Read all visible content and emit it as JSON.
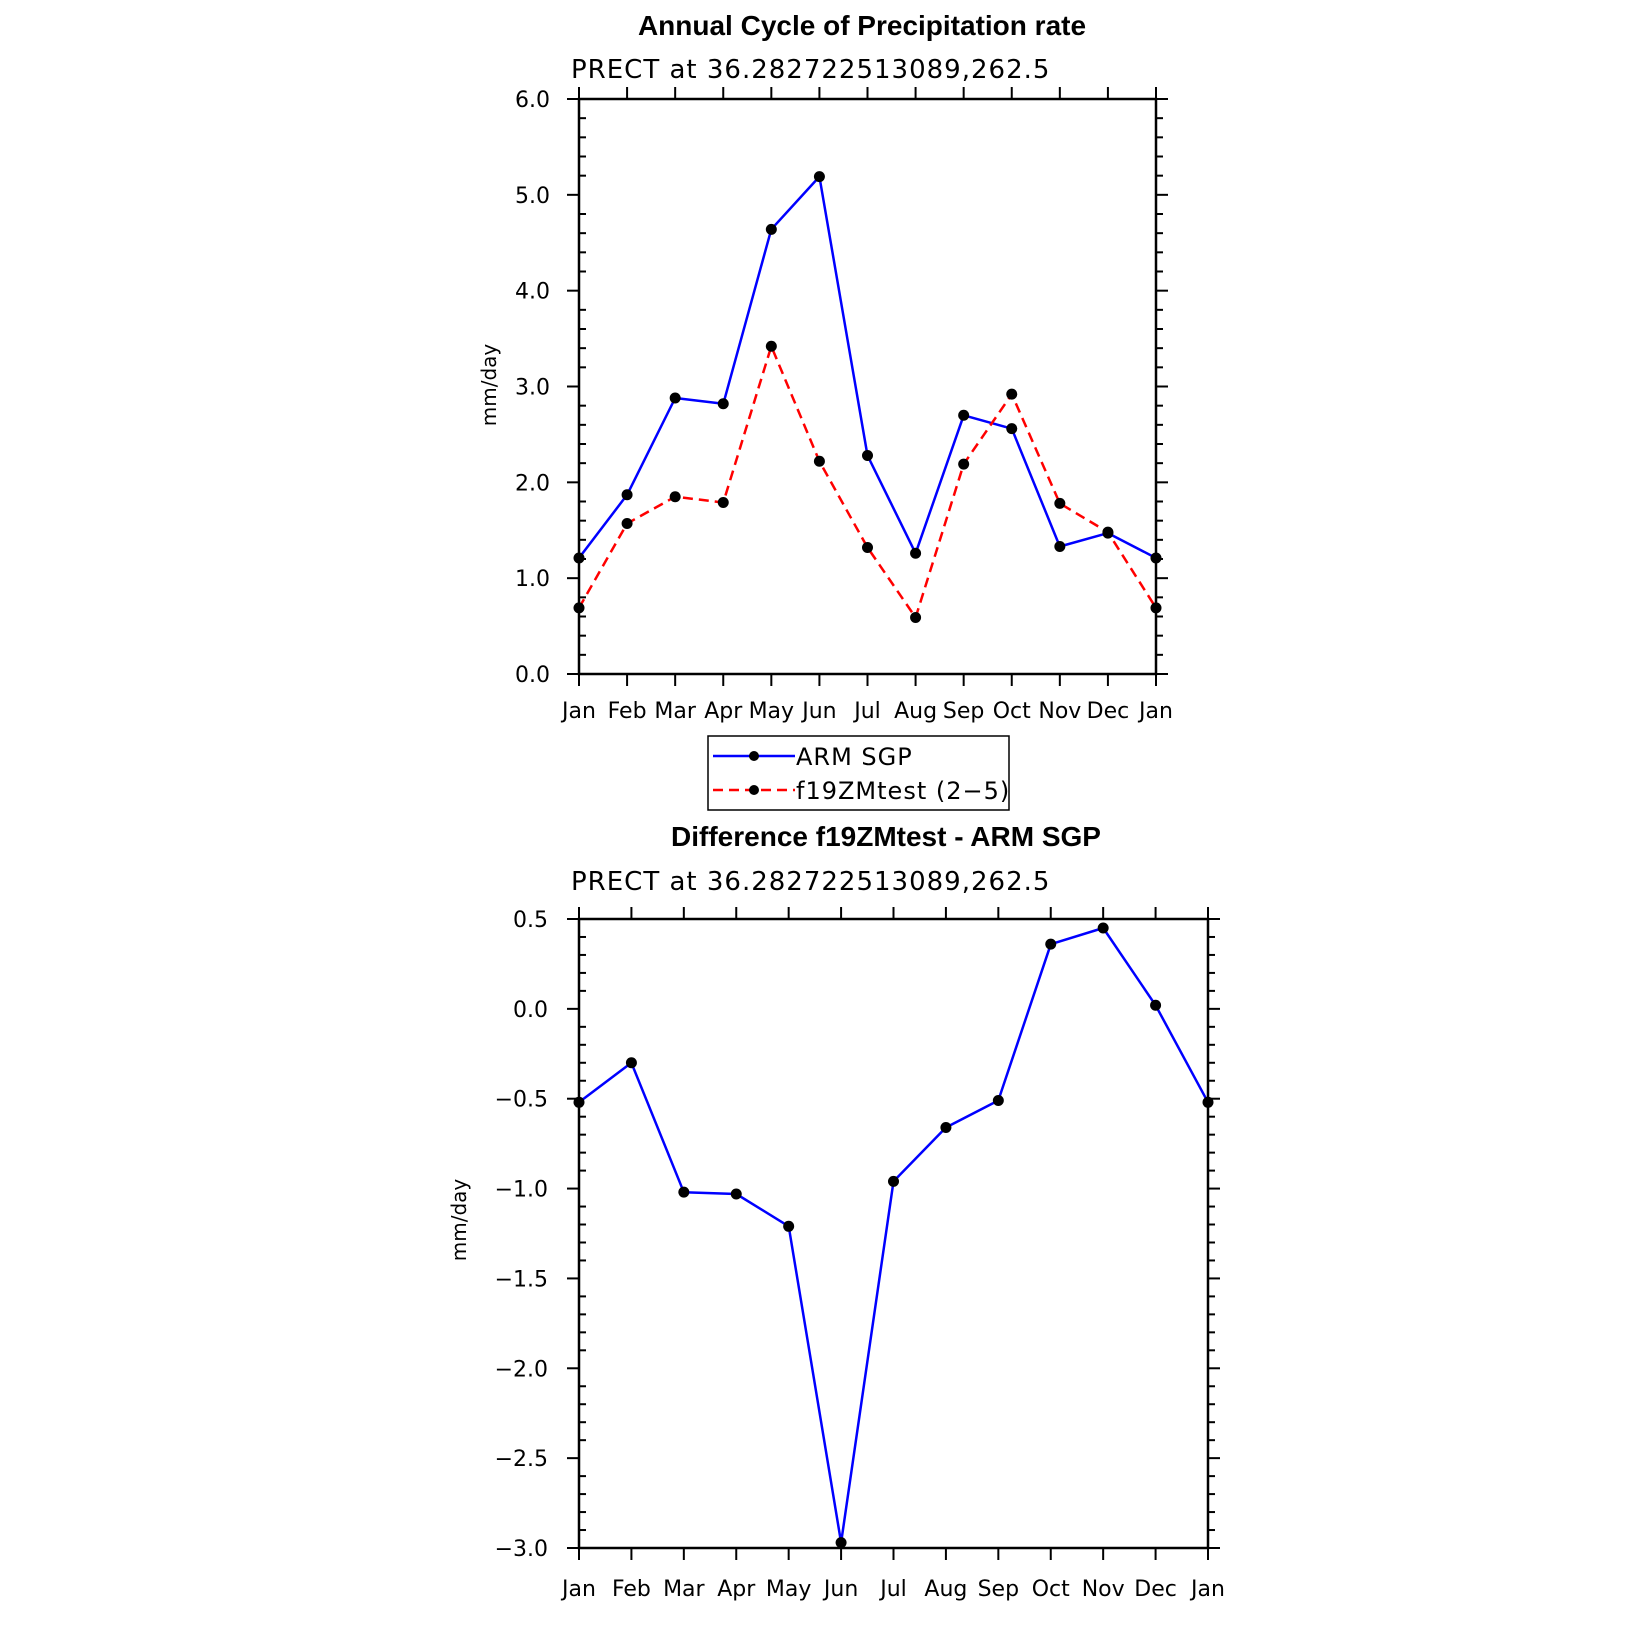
{
  "chart_data": [
    {
      "type": "line",
      "title": "Annual Cycle of Precipitation rate",
      "subtitle": "PRECT at 36.282722513089,262.5",
      "ylabel": "mm/day",
      "xlabel": "",
      "categories": [
        "Jan",
        "Feb",
        "Mar",
        "Apr",
        "May",
        "Jun",
        "Jul",
        "Aug",
        "Sep",
        "Oct",
        "Nov",
        "Dec",
        "Jan"
      ],
      "ylim": [
        0,
        6
      ],
      "yticks": [
        0,
        1,
        2,
        3,
        4,
        5,
        6
      ],
      "ytick_labels": [
        "0.0",
        "1.0",
        "2.0",
        "3.0",
        "4.0",
        "5.0",
        "6.0"
      ],
      "series": [
        {
          "name": "ARM SGP",
          "color": "#0000ff",
          "dash": "solid",
          "values": [
            1.21,
            1.87,
            2.88,
            2.82,
            4.64,
            5.19,
            2.28,
            1.26,
            2.7,
            2.56,
            1.33,
            1.47,
            1.21
          ]
        },
        {
          "name": "f19ZMtest (2−5)",
          "color": "#ff0000",
          "dash": "dashed",
          "values": [
            0.69,
            1.57,
            1.85,
            1.79,
            3.42,
            2.22,
            1.32,
            0.59,
            2.19,
            2.92,
            1.78,
            1.48,
            0.69
          ]
        }
      ],
      "legend": {
        "position": "below"
      }
    },
    {
      "type": "line",
      "title": "Difference f19ZMtest - ARM SGP",
      "subtitle": "PRECT at 36.282722513089,262.5",
      "ylabel": "mm/day",
      "xlabel": "",
      "categories": [
        "Jan",
        "Feb",
        "Mar",
        "Apr",
        "May",
        "Jun",
        "Jul",
        "Aug",
        "Sep",
        "Oct",
        "Nov",
        "Dec",
        "Jan"
      ],
      "ylim": [
        -3.0,
        0.5
      ],
      "yticks": [
        -3.0,
        -2.5,
        -2.0,
        -1.5,
        -1.0,
        -0.5,
        0.0,
        0.5
      ],
      "ytick_labels": [
        "−3.0",
        "−2.5",
        "−2.0",
        "−1.5",
        "−1.0",
        "−0.5",
        "0.0",
        "0.5"
      ],
      "series": [
        {
          "name": "difference",
          "color": "#0000ff",
          "dash": "solid",
          "values": [
            -0.52,
            -0.3,
            -1.02,
            -1.03,
            -1.21,
            -2.97,
            -0.96,
            -0.66,
            -0.51,
            0.36,
            0.45,
            0.02,
            -0.52
          ]
        }
      ]
    }
  ]
}
